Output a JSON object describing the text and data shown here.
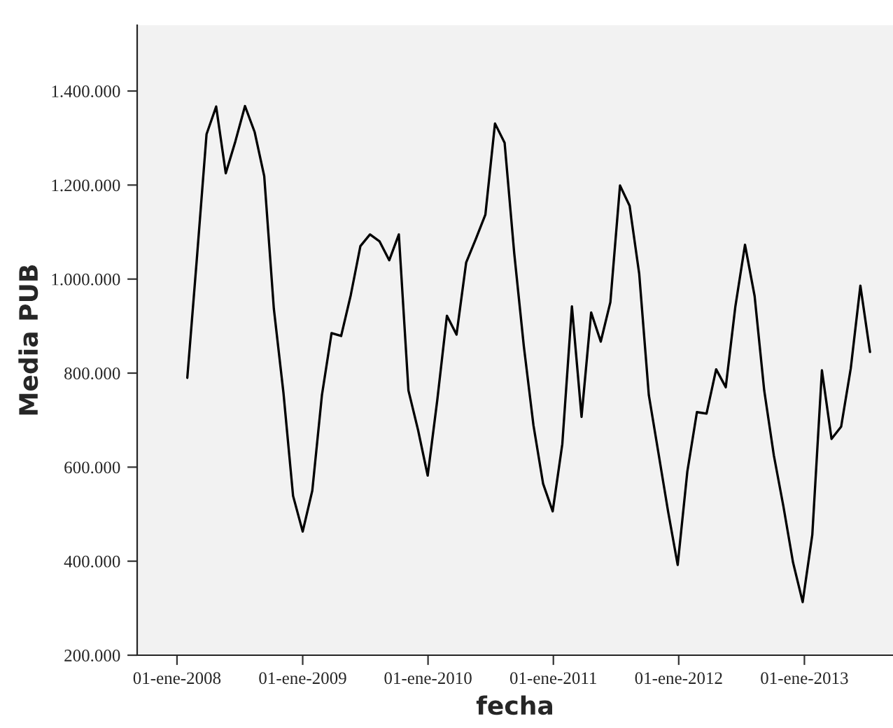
{
  "chart_data": {
    "type": "line",
    "xlabel": "fecha",
    "ylabel": "Media PUB",
    "x": [
      "2008-01-31",
      "2008-02-28",
      "2008-03-27",
      "2008-04-24",
      "2008-05-22",
      "2008-06-19",
      "2008-07-17",
      "2008-08-14",
      "2008-09-11",
      "2008-10-09",
      "2008-11-06",
      "2008-12-04",
      "2009-01-01",
      "2009-01-29",
      "2009-02-26",
      "2009-03-26",
      "2009-04-23",
      "2009-05-21",
      "2009-06-18",
      "2009-07-16",
      "2009-08-13",
      "2009-09-10",
      "2009-10-08",
      "2009-11-05",
      "2009-12-03",
      "2009-12-31",
      "2010-01-28",
      "2010-02-25",
      "2010-03-25",
      "2010-04-22",
      "2010-05-20",
      "2010-06-17",
      "2010-07-15",
      "2010-08-12",
      "2010-09-09",
      "2010-10-07",
      "2010-11-04",
      "2010-12-02",
      "2010-12-30",
      "2011-01-27",
      "2011-02-24",
      "2011-03-24",
      "2011-04-21",
      "2011-05-19",
      "2011-06-16",
      "2011-07-14",
      "2011-08-11",
      "2011-09-08",
      "2011-10-06",
      "2011-11-03",
      "2011-12-01",
      "2011-12-29",
      "2012-01-26",
      "2012-02-23",
      "2012-03-22",
      "2012-04-19",
      "2012-05-17",
      "2012-06-14",
      "2012-07-12",
      "2012-08-09",
      "2012-09-06",
      "2012-10-04",
      "2012-11-01",
      "2012-11-29",
      "2012-12-27",
      "2013-01-24",
      "2013-02-21",
      "2013-03-21",
      "2013-04-18",
      "2013-05-16",
      "2013-06-13",
      "2013-07-11"
    ],
    "series": [
      {
        "color": "#000000",
        "values": [
          790000,
          1045000,
          1308000,
          1367000,
          1225000,
          1293000,
          1368000,
          1313000,
          1219000,
          937000,
          758000,
          539000,
          463000,
          550000,
          753000,
          885000,
          879000,
          966000,
          1070000,
          1095000,
          1080000,
          1040000,
          1095000,
          763000,
          679000,
          582000,
          743000,
          922000,
          882000,
          1035000,
          1085000,
          1137000,
          1331000,
          1290000,
          1055000,
          857000,
          689000,
          565000,
          506000,
          649000,
          942000,
          707000,
          929000,
          867000,
          951000,
          1199000,
          1156000,
          1011000,
          753000,
          630000,
          506000,
          392000,
          590000,
          717000,
          714000,
          808000,
          770000,
          942000,
          1073000,
          964000,
          763000,
          625000,
          516000,
          397000,
          313000,
          456000,
          806000,
          660000,
          686000,
          810000,
          986000,
          845000
        ]
      }
    ],
    "xlim": [
      "2007-09-07",
      "2013-09-16"
    ],
    "xticks": [
      {
        "value": "2008-01-01",
        "label": "01-ene-2008"
      },
      {
        "value": "2009-01-01",
        "label": "01-ene-2009"
      },
      {
        "value": "2010-01-01",
        "label": "01-ene-2010"
      },
      {
        "value": "2011-01-01",
        "label": "01-ene-2011"
      },
      {
        "value": "2012-01-01",
        "label": "01-ene-2012"
      },
      {
        "value": "2013-01-01",
        "label": "01-ene-2013"
      }
    ],
    "ylim": [
      200000,
      1540000
    ],
    "yticks": [
      {
        "value": 200000,
        "label": "200.000"
      },
      {
        "value": 400000,
        "label": "400.000"
      },
      {
        "value": 600000,
        "label": "600.000"
      },
      {
        "value": 800000,
        "label": "800.000"
      },
      {
        "value": 1000000,
        "label": "1.000.000"
      },
      {
        "value": 1200000,
        "label": "1.200.000"
      },
      {
        "value": 1400000,
        "label": "1.400.000"
      }
    ],
    "grid": false,
    "marker": "none",
    "line_style": "solid"
  }
}
